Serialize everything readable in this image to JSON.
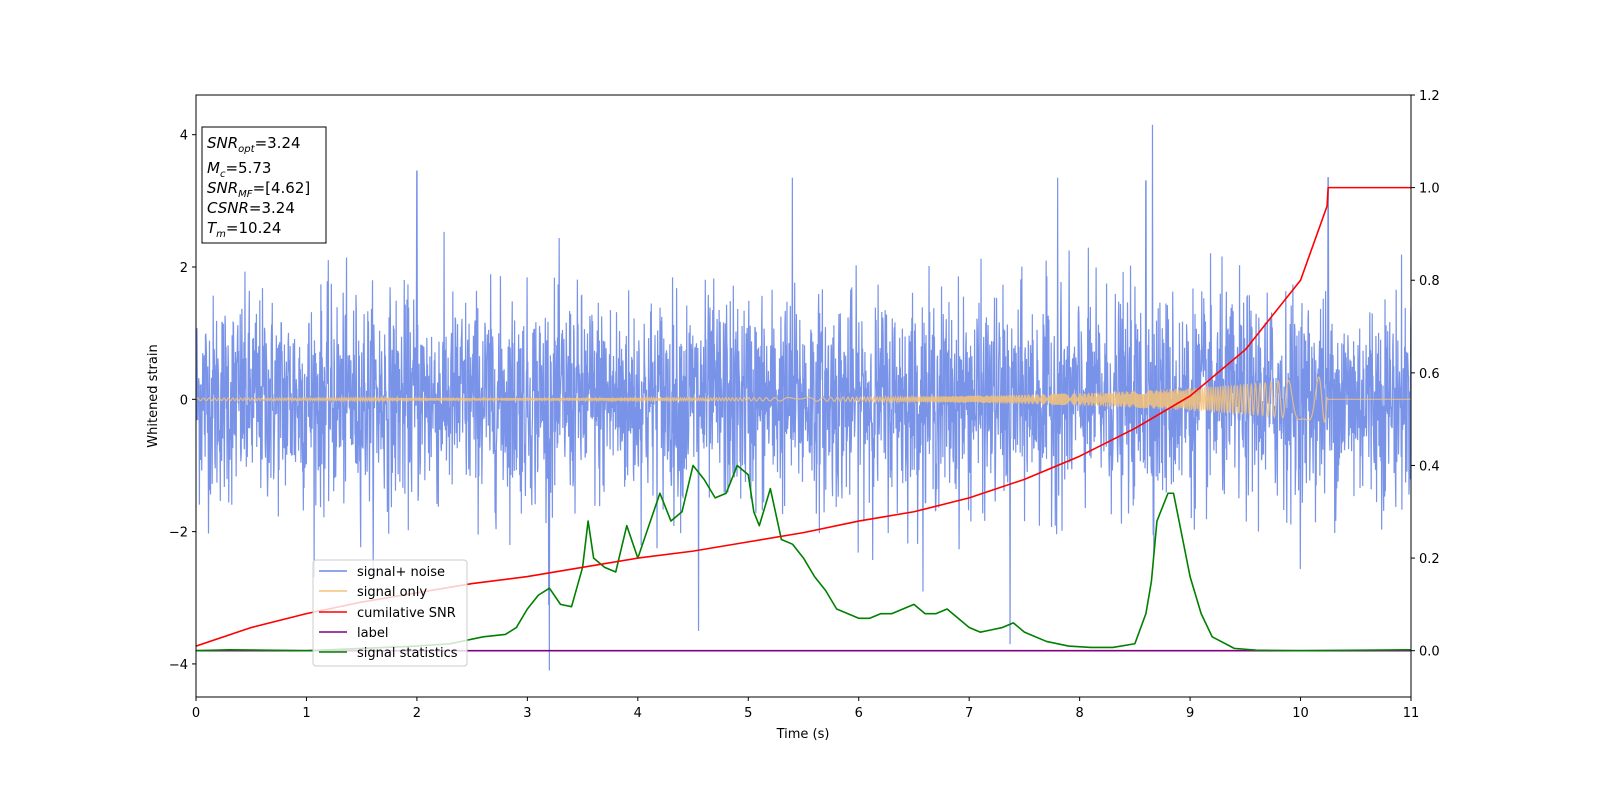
{
  "chart_data": {
    "type": "line",
    "xlabel": "Time (s)",
    "ylabel_left": "Whitened strain",
    "ylabel_right": "",
    "xlim": [
      0,
      11
    ],
    "ylim_left": [
      -4.5,
      4.6
    ],
    "ylim_right": [
      -0.1,
      1.2
    ],
    "x_ticks": [
      0,
      1,
      2,
      3,
      4,
      5,
      6,
      7,
      8,
      9,
      10,
      11
    ],
    "y_ticks_left": [
      -4,
      -2,
      0,
      2,
      4
    ],
    "y_ticks_right": [
      0.0,
      0.2,
      0.4,
      0.6,
      0.8,
      1.0,
      1.2
    ],
    "x_tick_labels": [
      "0",
      "1",
      "2",
      "3",
      "4",
      "5",
      "6",
      "7",
      "8",
      "9",
      "10",
      "11"
    ],
    "y_tick_labels_left": [
      "−4",
      "−2",
      "0",
      "2",
      "4"
    ],
    "y_tick_labels_right": [
      "0.0",
      "0.2",
      "0.4",
      "0.6",
      "0.8",
      "1.0",
      "1.2"
    ],
    "grid": false,
    "legend_position": "lower-left",
    "legend": [
      {
        "label": "signal+ noise",
        "color": "#6a87e6"
      },
      {
        "label": "signal only",
        "color": "#f4c27a"
      },
      {
        "label": "cumilative SNR",
        "color": "#ff0000"
      },
      {
        "label": "label",
        "color": "#800080"
      },
      {
        "label": "signal statistics",
        "color": "#008000"
      }
    ],
    "info_box": {
      "lines": [
        {
          "main": "SNR",
          "sub": "opt",
          "rest": "=3.24"
        },
        {
          "main": "M",
          "sub": "c",
          "rest": "=5.73"
        },
        {
          "main": "SNR",
          "sub": "MF",
          "rest": "=[4.62]"
        },
        {
          "main": "CSNR",
          "sub": "",
          "rest": "=3.24"
        },
        {
          "main": "T",
          "sub": "m",
          "rest": "=10.24"
        }
      ]
    },
    "series": [
      {
        "name": "signal+ noise",
        "axis": "left",
        "color": "#6a87e6",
        "kind": "noise_band",
        "x_range": [
          0,
          11
        ],
        "typical_band": [
          -1.7,
          1.7
        ],
        "max_peaks": [
          3.45,
          3.35,
          3.35,
          3.3,
          3.35,
          4.15
        ],
        "peak_times": [
          2.0,
          5.4,
          7.8,
          8.6,
          10.25,
          8.66
        ],
        "min_dips": [
          -4.1,
          -3.5,
          -3.7
        ],
        "dip_times": [
          3.2,
          4.55,
          7.37
        ]
      },
      {
        "name": "signal only",
        "axis": "left",
        "color": "#f4c27a",
        "kind": "chirp",
        "x_range": [
          0,
          10.24
        ],
        "amplitude_start": 0.02,
        "amplitude_end": 0.35
      },
      {
        "name": "cumilative SNR",
        "axis": "right",
        "color": "#ff0000",
        "x": [
          0,
          0.5,
          1,
          1.5,
          2,
          2.5,
          3,
          3.5,
          4,
          4.5,
          5,
          5.5,
          6,
          6.5,
          7,
          7.5,
          8,
          8.5,
          9,
          9.5,
          10,
          10.24,
          10.25,
          11
        ],
        "y": [
          0.01,
          0.05,
          0.08,
          0.105,
          0.125,
          0.145,
          0.16,
          0.18,
          0.2,
          0.215,
          0.235,
          0.255,
          0.28,
          0.3,
          0.33,
          0.37,
          0.42,
          0.48,
          0.55,
          0.65,
          0.8,
          0.96,
          1.0,
          1.0
        ]
      },
      {
        "name": "label",
        "axis": "right",
        "color": "#800080",
        "x": [
          0,
          11
        ],
        "y": [
          0,
          0
        ]
      },
      {
        "name": "signal statistics",
        "axis": "right",
        "color": "#008000",
        "x": [
          0,
          0.3,
          1.0,
          2.0,
          2.3,
          2.6,
          2.8,
          2.9,
          3.0,
          3.1,
          3.2,
          3.3,
          3.4,
          3.5,
          3.55,
          3.6,
          3.7,
          3.8,
          3.9,
          4.0,
          4.1,
          4.2,
          4.3,
          4.4,
          4.5,
          4.6,
          4.7,
          4.8,
          4.9,
          5.0,
          5.05,
          5.1,
          5.2,
          5.3,
          5.4,
          5.5,
          5.6,
          5.7,
          5.8,
          5.9,
          6.0,
          6.1,
          6.2,
          6.3,
          6.4,
          6.5,
          6.6,
          6.7,
          6.8,
          6.9,
          7.0,
          7.1,
          7.2,
          7.3,
          7.4,
          7.5,
          7.7,
          7.9,
          8.1,
          8.3,
          8.5,
          8.6,
          8.65,
          8.7,
          8.8,
          8.85,
          8.9,
          9.0,
          9.1,
          9.2,
          9.4,
          9.6,
          10.0,
          11.0
        ],
        "y": [
          0.0,
          0.002,
          0.0,
          0.01,
          0.015,
          0.03,
          0.035,
          0.05,
          0.09,
          0.12,
          0.135,
          0.1,
          0.095,
          0.18,
          0.28,
          0.2,
          0.18,
          0.17,
          0.27,
          0.2,
          0.27,
          0.34,
          0.28,
          0.3,
          0.4,
          0.37,
          0.33,
          0.34,
          0.4,
          0.38,
          0.3,
          0.27,
          0.35,
          0.24,
          0.23,
          0.2,
          0.16,
          0.13,
          0.09,
          0.08,
          0.07,
          0.07,
          0.08,
          0.08,
          0.09,
          0.1,
          0.08,
          0.08,
          0.09,
          0.07,
          0.05,
          0.04,
          0.045,
          0.05,
          0.06,
          0.04,
          0.02,
          0.01,
          0.007,
          0.007,
          0.015,
          0.08,
          0.15,
          0.28,
          0.34,
          0.34,
          0.28,
          0.16,
          0.08,
          0.03,
          0.005,
          0.001,
          0.0,
          0.002
        ]
      }
    ]
  }
}
